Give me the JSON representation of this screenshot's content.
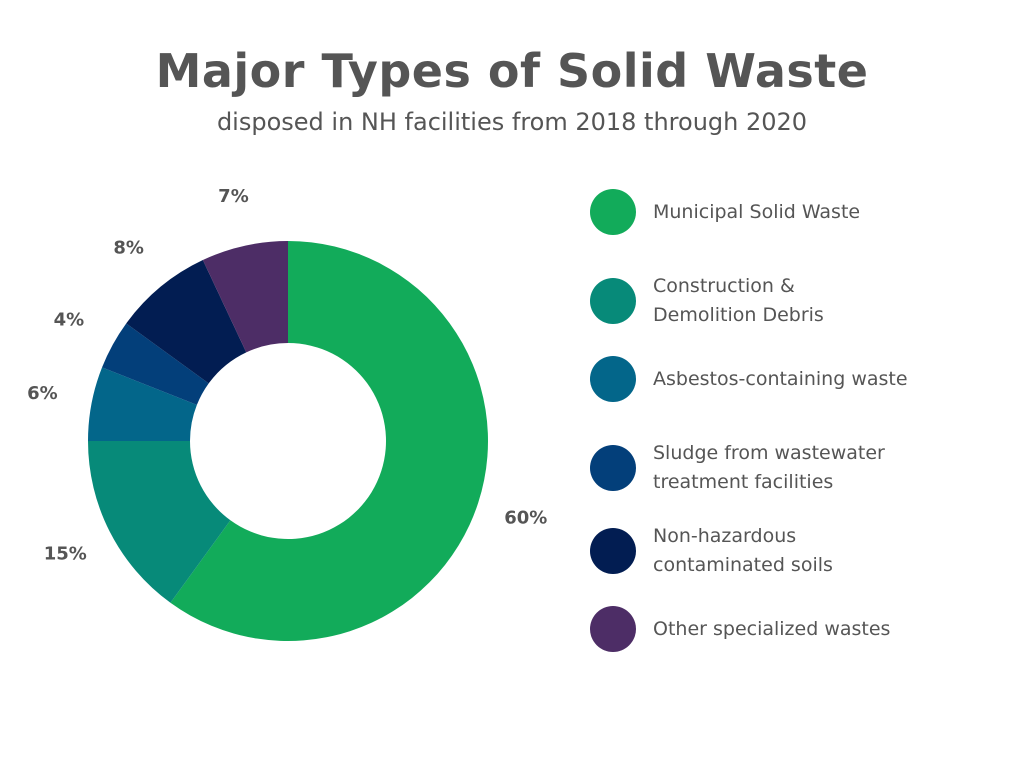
{
  "title": "Major Types of Solid Waste",
  "subtitle": "disposed in NH facilities from 2018 through 2020",
  "chart_data": {
    "type": "pie",
    "variant": "donut",
    "title": "Major Types of Solid Waste",
    "subtitle": "disposed in NH facilities from 2018 through 2020",
    "legend_position": "right",
    "slices": [
      {
        "name": "Municipal Solid Waste",
        "legend_label": "Municipal Solid Waste",
        "value": 60,
        "label": "60%",
        "color": "#12AB5A"
      },
      {
        "name": "Construction & Demolition Debris",
        "legend_label": "Construction &\nDemolition Debris",
        "value": 15,
        "label": "15%",
        "color": "#078A79"
      },
      {
        "name": "Asbestos-containing waste",
        "legend_label": "Asbestos-containing waste",
        "value": 6,
        "label": "6%",
        "color": "#03668A"
      },
      {
        "name": "Sludge from wastewater treatment facilities",
        "legend_label": "Sludge from wastewater\ntreatment facilities",
        "value": 4,
        "label": "4%",
        "color": "#033F7A"
      },
      {
        "name": "Non-hazardous contaminated soils",
        "legend_label": "Non-hazardous\ncontaminated soils",
        "value": 8,
        "label": "8%",
        "color": "#021D52"
      },
      {
        "name": "Other specialized wastes",
        "legend_label": "Other specialized wastes",
        "value": 7,
        "label": "7%",
        "color": "#4D2D66"
      }
    ]
  }
}
